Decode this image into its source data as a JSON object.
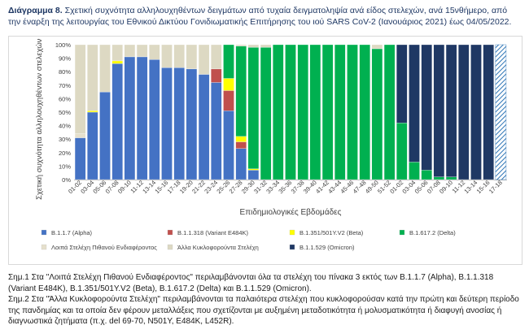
{
  "caption": {
    "label": "Διάγραμμα 8.",
    "text": "Σχετική συχνότητα αλληλουχηθέντων δειγμάτων από τυχαία δειγματοληψία ανά είδος στελεχών, ανά 15νθήμερο, από την έναρξη της λειτουργίας του Εθνικού Δικτύου Γονιδιωματικής Επιτήρησης του ιού SARS CoV-2 (Ιανουάριος 2021) έως 04/05/2022."
  },
  "chart_data": {
    "type": "bar",
    "stacked": true,
    "ylabel": "Σχετική συχνότητα αλληλουχηθέντων στελεχών (%)",
    "xlabel": "Επιδημιολογικές Εβδομάδες",
    "ylim": [
      0,
      100
    ],
    "yticks": [
      "0%",
      "10%",
      "20%",
      "30%",
      "40%",
      "50%",
      "60%",
      "70%",
      "80%",
      "90%",
      "100%"
    ],
    "grid": false,
    "legend_position": "bottom",
    "categories": [
      "01-02",
      "03-04",
      "05-06",
      "07-08",
      "09-10",
      "11-12",
      "13-14",
      "15-16",
      "17-18",
      "19-20",
      "21-22",
      "23-24",
      "25-26",
      "27-28",
      "29-30",
      "31-32",
      "33-34",
      "35-36",
      "37-38",
      "39-40",
      "41-42",
      "43-44",
      "45-46",
      "47-48",
      "49-50",
      "51-52",
      "01-02",
      "03-04",
      "05-06",
      "07-08",
      "09-10",
      "11-12",
      "13-14",
      "15-16",
      "17-18"
    ],
    "series": [
      {
        "name": "B.1.1.7 (Alpha)",
        "color": "#4472c4",
        "values": [
          31,
          50,
          65,
          86,
          91,
          91,
          89,
          83,
          83,
          82,
          78,
          72,
          51,
          23,
          7,
          0,
          0,
          0,
          0,
          0,
          0,
          0,
          0,
          0,
          0,
          0,
          0,
          0,
          0,
          0,
          0,
          0,
          0,
          0,
          0
        ]
      },
      {
        "name": "B.1.1.318 (Variant E484K)",
        "color": "#c0504d",
        "values": [
          0,
          0,
          0,
          0,
          0,
          0,
          0,
          0,
          0,
          0,
          0,
          10,
          15,
          5,
          0,
          0,
          0,
          0,
          0,
          0,
          0,
          0,
          0,
          0,
          0,
          0,
          0,
          0,
          0,
          0,
          0,
          0,
          0,
          0,
          0
        ]
      },
      {
        "name": "B.1.351/501Y.V2 (Beta)",
        "color": "#ffff00",
        "values": [
          0,
          1,
          0,
          2,
          0,
          0,
          0,
          0,
          0,
          0,
          0,
          0,
          9,
          4,
          1,
          0,
          0,
          0,
          0,
          0,
          0,
          0,
          0,
          0,
          0,
          0,
          0,
          0,
          0,
          0,
          0,
          0,
          0,
          0,
          0
        ]
      },
      {
        "name": "B.1.617.2 (Delta)",
        "color": "#00b050",
        "values": [
          0,
          0,
          0,
          0,
          0,
          0,
          0,
          0,
          0,
          0,
          0,
          0,
          25,
          67,
          90,
          98,
          100,
          100,
          100,
          100,
          100,
          100,
          100,
          100,
          97,
          100,
          42,
          13,
          7,
          2,
          2,
          0,
          0,
          0,
          0
        ]
      },
      {
        "name": "Λοιπά Στελέχη Πιθανού Ενδιαφέροντος",
        "color": "#e6e0cc",
        "values": [
          3,
          0,
          0,
          0,
          0,
          0,
          0,
          0,
          0,
          0,
          0,
          0,
          0,
          0,
          0,
          0,
          0,
          0,
          0,
          0,
          0,
          0,
          0,
          0,
          0,
          0,
          0,
          0,
          0,
          0,
          0,
          0,
          0,
          0,
          0
        ]
      },
      {
        "name": "Άλλα Κυκλοφορούντα Στελέχη",
        "color": "#ddd9c3",
        "values": [
          66,
          49,
          35,
          12,
          9,
          9,
          11,
          17,
          17,
          18,
          22,
          18,
          0,
          1,
          2,
          2,
          0,
          0,
          0,
          0,
          0,
          0,
          0,
          0,
          3,
          0,
          0,
          0,
          0,
          0,
          0,
          0,
          0,
          0,
          0
        ]
      },
      {
        "name": "B.1.1.529 (Omicron)",
        "color": "#1f3864",
        "values": [
          0,
          0,
          0,
          0,
          0,
          0,
          0,
          0,
          0,
          0,
          0,
          0,
          0,
          0,
          0,
          0,
          0,
          0,
          0,
          0,
          0,
          0,
          0,
          0,
          0,
          0,
          58,
          87,
          93,
          98,
          98,
          100,
          100,
          100,
          100
        ]
      }
    ],
    "last_bar_hatched": true
  },
  "notes": [
    "Σημ.1 Στα \"Λοιπά Στελέχη Πιθανού Ενδιαφέροντος\" περιλαμβάνονται όλα τα στελέχη του πίνακα 3 εκτός των B.1.1.7 (Alpha), B.1.1.318 (Variant E484K), B.1.351/501Y.V2 (Beta), B.1.617.2 (Delta) και B.1.1.529 (Omicron).",
    "Σημ.2 Στα \"Άλλα Κυκλοφορούντα Στελέχη\" περιλαμβάνονται τα παλαιότερα στελέχη που κυκλοφορούσαν κατά την πρώτη και δεύτερη περίοδο της πανδημίας και τα οποία δεν φέρουν μεταλλάξεις που σχετίζονται με αυξημένη μεταδοτικότητα ή μολυσματικότητα ή διαφυγή ανοσίας ή διαγνωστικά ζητήματα (π.χ. del 69-70, N501Y, E484K, L452R)."
  ]
}
